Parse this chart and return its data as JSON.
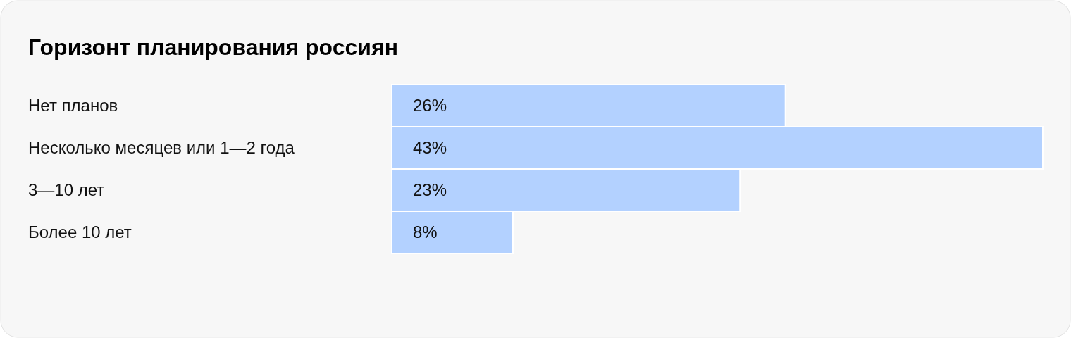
{
  "chart_data": {
    "type": "bar",
    "orientation": "horizontal",
    "title": "Горизонт планирования россиян",
    "categories": [
      "Нет планов",
      "Несколько месяцев или 1—2 года",
      "3—10 лет",
      "Более 10 лет"
    ],
    "values": [
      26,
      43,
      23,
      8
    ],
    "value_labels": [
      "26%",
      "43%",
      "23%",
      "8%"
    ],
    "color": "#b3d1ff"
  }
}
